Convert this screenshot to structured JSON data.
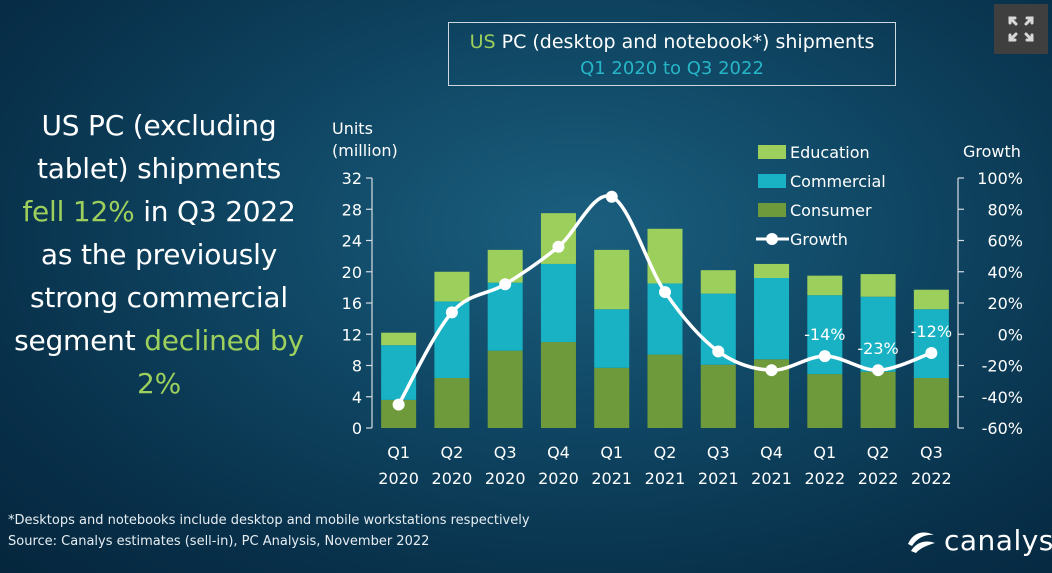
{
  "title": {
    "prefix": "US",
    "rest": " PC (desktop and notebook*) shipments",
    "subtitle": "Q1 2020 to Q3 2022"
  },
  "headline": {
    "p1": "US PC (excluding tablet) shipments ",
    "p2": "fell 12%",
    "p3": " in Q3 2022 as the previously strong commercial segment ",
    "p4": "declined by 2%"
  },
  "footnote": {
    "line1": "*Desktops and notebooks include desktop and mobile workstations respectively",
    "line2": "Source: Canalys estimates (sell-in), PC Analysis, November 2022"
  },
  "logo": {
    "text": "canalys",
    "icon": "canalys-logo-icon"
  },
  "expand_icon": "expand-arrows-icon",
  "chart_data": {
    "type": "bar",
    "stacked": true,
    "title": "US PC (desktop and notebook*) shipments",
    "subtitle": "Q1 2020 to Q3 2022",
    "ylabel_lines": [
      "Units",
      "(million)"
    ],
    "ylabel_right": "Growth",
    "ylim": [
      0,
      32
    ],
    "yticks": [
      0,
      4,
      8,
      12,
      16,
      20,
      24,
      28,
      32
    ],
    "y2lim": [
      -60,
      100
    ],
    "y2ticks": [
      "-60%",
      "-40%",
      "-20%",
      "0%",
      "20%",
      "40%",
      "60%",
      "80%",
      "100%"
    ],
    "categories": [
      [
        "Q1",
        "2020"
      ],
      [
        "Q2",
        "2020"
      ],
      [
        "Q3",
        "2020"
      ],
      [
        "Q4",
        "2020"
      ],
      [
        "Q1",
        "2021"
      ],
      [
        "Q2",
        "2021"
      ],
      [
        "Q3",
        "2021"
      ],
      [
        "Q4",
        "2021"
      ],
      [
        "Q1",
        "2022"
      ],
      [
        "Q2",
        "2022"
      ],
      [
        "Q3",
        "2022"
      ]
    ],
    "series": [
      {
        "name": "Consumer",
        "color": "#6f9a3c",
        "values": [
          3.6,
          6.4,
          9.9,
          11.0,
          7.7,
          9.4,
          8.1,
          8.8,
          6.9,
          7.2,
          6.4
        ]
      },
      {
        "name": "Commercial",
        "color": "#19b2c4",
        "values": [
          7.0,
          9.8,
          8.7,
          10.0,
          7.5,
          9.1,
          9.1,
          10.4,
          10.1,
          9.6,
          8.8
        ]
      },
      {
        "name": "Education",
        "color": "#9ccf5b",
        "values": [
          1.6,
          3.8,
          4.2,
          6.5,
          7.6,
          7.0,
          3.0,
          1.8,
          2.5,
          2.9,
          2.5
        ]
      }
    ],
    "growth": {
      "name": "Growth",
      "values": [
        -45,
        14,
        32,
        56,
        88,
        27,
        -11,
        -23,
        -14,
        -23,
        -12
      ],
      "labels": [
        {
          "index": 8,
          "text": "-14%"
        },
        {
          "index": 9,
          "text": "-23%"
        },
        {
          "index": 10,
          "text": "-12%"
        }
      ]
    },
    "legend": [
      "Education",
      "Commercial",
      "Consumer",
      "Growth"
    ],
    "legend_position": "top-right"
  }
}
